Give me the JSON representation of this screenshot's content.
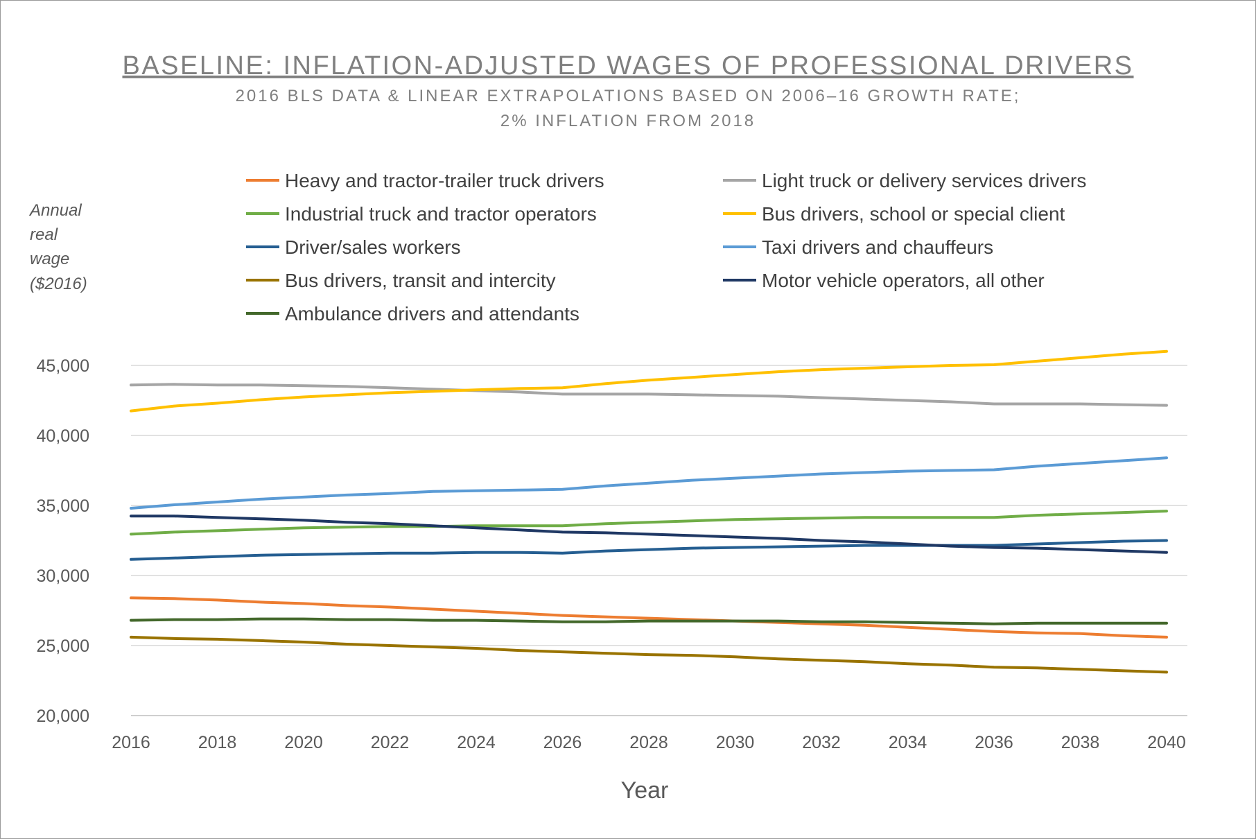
{
  "chart_data": {
    "type": "line",
    "title": "BASELINE: INFLATION-ADJUSTED WAGES OF PROFESSIONAL DRIVERS",
    "subtitle_lines": [
      "2016 BLS DATA & LINEAR EXTRAPOLATIONS BASED ON 2006–16 GROWTH RATE;",
      "2% INFLATION FROM 2018"
    ],
    "ylabel_lines": [
      "Annual",
      "real",
      "wage",
      "($2016)"
    ],
    "xlabel": "Year",
    "ylim": [
      20000,
      45000
    ],
    "yticks": [
      20000,
      25000,
      30000,
      35000,
      40000,
      45000
    ],
    "ytick_labels": [
      "20,000",
      "25,000",
      "30,000",
      "35,000",
      "40,000",
      "45,000"
    ],
    "xlim": [
      2016,
      2040
    ],
    "xticks": [
      2016,
      2018,
      2020,
      2022,
      2024,
      2026,
      2028,
      2030,
      2032,
      2034,
      2036,
      2038,
      2040
    ],
    "xtick_labels": [
      "2016",
      "2018",
      "2020",
      "2022",
      "2024",
      "2026",
      "2028",
      "2030",
      "2032",
      "2034",
      "2036",
      "2038",
      "2040"
    ],
    "grid": true,
    "legend_position": "top",
    "x": [
      2016,
      2017,
      2018,
      2019,
      2020,
      2021,
      2022,
      2023,
      2024,
      2025,
      2026,
      2027,
      2028,
      2029,
      2030,
      2031,
      2032,
      2033,
      2034,
      2035,
      2036,
      2037,
      2038,
      2039,
      2040
    ],
    "series": [
      {
        "name": "Heavy and tractor-trailer truck drivers",
        "color": "#ed7d31",
        "values": [
          28400,
          28350,
          28250,
          28100,
          28000,
          27850,
          27750,
          27600,
          27450,
          27300,
          27150,
          27050,
          26950,
          26850,
          26750,
          26650,
          26550,
          26450,
          26300,
          26150,
          26000,
          25900,
          25850,
          25700,
          25600
        ]
      },
      {
        "name": "Light truck or delivery services drivers",
        "color": "#a5a5a5",
        "values": [
          43600,
          43650,
          43600,
          43600,
          43550,
          43500,
          43400,
          43300,
          43200,
          43100,
          42950,
          42950,
          42950,
          42900,
          42850,
          42800,
          42700,
          42600,
          42500,
          42400,
          42250,
          42250,
          42250,
          42200,
          42150
        ]
      },
      {
        "name": "Industrial truck and tractor operators",
        "color": "#70ad47",
        "values": [
          32950,
          33100,
          33200,
          33300,
          33400,
          33450,
          33500,
          33500,
          33550,
          33550,
          33550,
          33700,
          33800,
          33900,
          34000,
          34050,
          34100,
          34150,
          34150,
          34150,
          34150,
          34300,
          34400,
          34500,
          34600
        ]
      },
      {
        "name": "Bus drivers, school or special client",
        "color": "#ffc000",
        "values": [
          41750,
          42100,
          42300,
          42550,
          42750,
          42900,
          43050,
          43150,
          43250,
          43350,
          43400,
          43700,
          43950,
          44150,
          44350,
          44550,
          44700,
          44800,
          44900,
          45000,
          45050,
          45300,
          45550,
          45800,
          46000
        ]
      },
      {
        "name": "Driver/sales workers",
        "color": "#255e91",
        "values": [
          31150,
          31250,
          31350,
          31450,
          31500,
          31550,
          31600,
          31600,
          31650,
          31650,
          31600,
          31750,
          31850,
          31950,
          32000,
          32050,
          32100,
          32150,
          32150,
          32150,
          32150,
          32250,
          32350,
          32450,
          32500
        ]
      },
      {
        "name": "Taxi drivers and chauffeurs",
        "color": "#5b9bd5",
        "values": [
          34800,
          35050,
          35250,
          35450,
          35600,
          35750,
          35850,
          36000,
          36050,
          36100,
          36150,
          36400,
          36600,
          36800,
          36950,
          37100,
          37250,
          37350,
          37450,
          37500,
          37550,
          37800,
          38000,
          38200,
          38400
        ]
      },
      {
        "name": "Bus drivers, transit and intercity",
        "color": "#997300",
        "values": [
          25600,
          25500,
          25450,
          25350,
          25250,
          25100,
          25000,
          24900,
          24800,
          24650,
          24550,
          24450,
          24350,
          24300,
          24200,
          24050,
          23950,
          23850,
          23700,
          23600,
          23450,
          23400,
          23300,
          23200,
          23100
        ]
      },
      {
        "name": "Motor vehicle operators, all other",
        "color": "#1f3864",
        "values": [
          34250,
          34250,
          34150,
          34050,
          33950,
          33800,
          33700,
          33550,
          33400,
          33250,
          33100,
          33050,
          32950,
          32850,
          32750,
          32650,
          32500,
          32400,
          32250,
          32100,
          32000,
          31950,
          31850,
          31750,
          31650
        ]
      },
      {
        "name": "Ambulance drivers and attendants",
        "color": "#43682b",
        "values": [
          26800,
          26850,
          26850,
          26900,
          26900,
          26850,
          26850,
          26800,
          26800,
          26750,
          26700,
          26700,
          26750,
          26750,
          26750,
          26750,
          26700,
          26700,
          26650,
          26600,
          26550,
          26600,
          26600,
          26600,
          26600
        ]
      }
    ]
  }
}
